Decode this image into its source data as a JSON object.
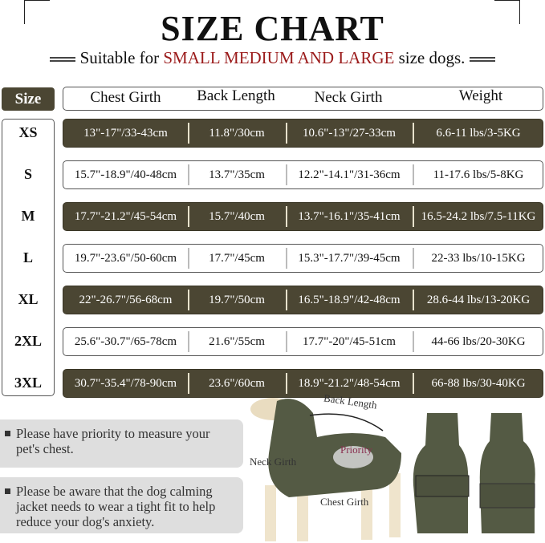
{
  "title": "SIZE CHART",
  "subtitle": {
    "pre": "Suitable for ",
    "highlight": "SMALL MEDIUM AND LARGE",
    "post": " size dogs."
  },
  "headers": {
    "size": "Size",
    "chest": "Chest Girth",
    "back": "Back Length",
    "neck": "Neck Girth",
    "weight": "Weight"
  },
  "rows": [
    {
      "size": "XS",
      "chest": "13\"-17\"/33-43cm",
      "back": "11.8\"/30cm",
      "neck": "10.6\"-13\"/27-33cm",
      "weight": "6.6-11 lbs/3-5KG"
    },
    {
      "size": "S",
      "chest": "15.7\"-18.9\"/40-48cm",
      "back": "13.7\"/35cm",
      "neck": "12.2\"-14.1\"/31-36cm",
      "weight": "11-17.6 lbs/5-8KG"
    },
    {
      "size": "M",
      "chest": "17.7\"-21.2\"/45-54cm",
      "back": "15.7\"/40cm",
      "neck": "13.7\"-16.1\"/35-41cm",
      "weight": "16.5-24.2 lbs/7.5-11KG"
    },
    {
      "size": "L",
      "chest": "19.7\"-23.6\"/50-60cm",
      "back": "17.7\"/45cm",
      "neck": "15.3\"-17.7\"/39-45cm",
      "weight": "22-33 lbs/10-15KG"
    },
    {
      "size": "XL",
      "chest": "22\"-26.7\"/56-68cm",
      "back": "19.7\"/50cm",
      "neck": "16.5\"-18.9\"/42-48cm",
      "weight": "28.6-44 lbs/13-20KG"
    },
    {
      "size": "2XL",
      "chest": "25.6\"-30.7\"/65-78cm",
      "back": "21.6\"/55cm",
      "neck": "17.7\"-20\"/45-51cm",
      "weight": "44-66 lbs/20-30KG"
    },
    {
      "size": "3XL",
      "chest": "30.7\"-35.4\"/78-90cm",
      "back": "23.6\"/60cm",
      "neck": "18.9\"-21.2\"/48-54cm",
      "weight": "66-88 lbs/30-40KG"
    }
  ],
  "notes": [
    "Please have priority to measure your pet's chest.",
    "Please be aware that the dog calming jacket needs to wear a tight fit to help reduce your dog's anxiety."
  ],
  "diagram": {
    "back_length": "Back Length",
    "neck_girth": "Neck Girth",
    "chest_girth": "Chest Girth",
    "priority": "Priority"
  },
  "colors": {
    "dark_row": "#4b4633",
    "highlight": "#9b1b1b",
    "jacket": "#545a44"
  }
}
